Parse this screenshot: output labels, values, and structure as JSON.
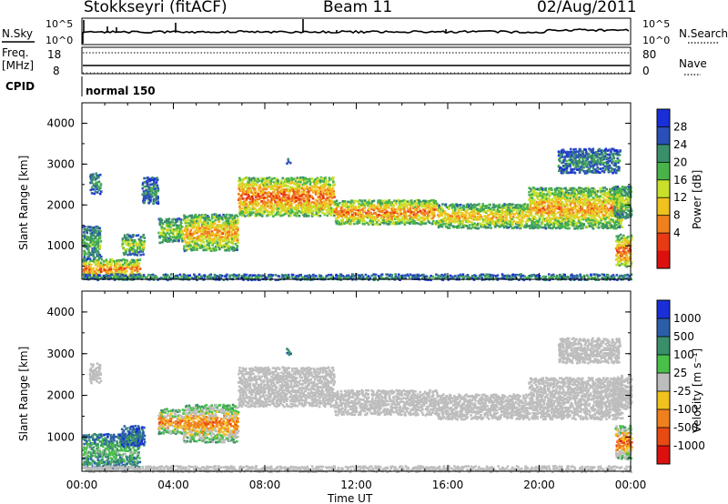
{
  "header": {
    "station": "Stokkseyri (fitACF)",
    "beam": "Beam 11",
    "date": "02/Aug/2011"
  },
  "top_panels": {
    "nsky_label": "N.Sky",
    "nsearch_label": "N.Search",
    "nsky_ticks": [
      "10^5",
      "10^0"
    ],
    "freq_label": "Freq.",
    "freq_unit": "[MHz]",
    "freq_ticks": [
      "18",
      "8"
    ],
    "nave_label": "Nave",
    "nave_ticks": [
      "80",
      "0"
    ],
    "cpid_label": "CPID",
    "cpid_value": "normal 150"
  },
  "colors": {
    "power_scale": [
      "#1a2fd8",
      "#2a4fb8",
      "#3a8f6a",
      "#49b34a",
      "#c8e02a",
      "#f0c21e",
      "#f0801e",
      "#e83a14",
      "#dd1010"
    ],
    "velocity_scale": [
      "#1a2fd8",
      "#2a5fa8",
      "#3a8f6a",
      "#49c04a",
      "#bdbdbd",
      "#f0c21e",
      "#f0801e",
      "#e84a14",
      "#dd1010"
    ]
  },
  "chart_data": [
    {
      "type": "heatmap",
      "title": "Power",
      "xlabel": "",
      "ylabel": "Slant Range [km]",
      "x_ticks": [
        "00:00",
        "04:00",
        "08:00",
        "12:00",
        "16:00",
        "20:00",
        "00:00"
      ],
      "y_ticks": [
        4000,
        3000,
        2000,
        1000
      ],
      "xlim": [
        0,
        24
      ],
      "ylim": [
        180,
        4500
      ],
      "colorbar": {
        "label": "Power [dB]",
        "ticks": [
          28,
          24,
          20,
          16,
          12,
          8,
          4
        ]
      },
      "bands": [
        {
          "t": [
            0,
            2.5
          ],
          "r": [
            200,
            700
          ],
          "level": 0.75
        },
        {
          "t": [
            0,
            24
          ],
          "r": [
            190,
            330
          ],
          "level": 0.3
        },
        {
          "t": [
            0,
            0.8
          ],
          "r": [
            700,
            1500
          ],
          "level": 0.4
        },
        {
          "t": [
            0.3,
            0.8
          ],
          "r": [
            2300,
            2800
          ],
          "level": 0.3
        },
        {
          "t": [
            1.7,
            2.7
          ],
          "r": [
            800,
            1300
          ],
          "level": 0.5
        },
        {
          "t": [
            3.3,
            4.4
          ],
          "r": [
            1100,
            1700
          ],
          "level": 0.5
        },
        {
          "t": [
            4.4,
            6.8
          ],
          "r": [
            900,
            1800
          ],
          "level": 0.7
        },
        {
          "t": [
            6.8,
            11.0
          ],
          "r": [
            1750,
            2700
          ],
          "level": 0.8
        },
        {
          "t": [
            11.0,
            15.5
          ],
          "r": [
            1550,
            2150
          ],
          "level": 0.75
        },
        {
          "t": [
            15.5,
            19.5
          ],
          "r": [
            1450,
            2050
          ],
          "level": 0.65
        },
        {
          "t": [
            19.5,
            23.6
          ],
          "r": [
            1450,
            2450
          ],
          "level": 0.7
        },
        {
          "t": [
            20.8,
            23.5
          ],
          "r": [
            2800,
            3400
          ],
          "level": 0.3
        },
        {
          "t": [
            23.3,
            24.0
          ],
          "r": [
            500,
            1300
          ],
          "level": 0.8
        },
        {
          "t": [
            23.2,
            24.0
          ],
          "r": [
            1700,
            2500
          ],
          "level": 0.5
        },
        {
          "t": [
            2.6,
            3.3
          ],
          "r": [
            2050,
            2700
          ],
          "level": 0.3
        },
        {
          "t": [
            8.9,
            9.1
          ],
          "r": [
            3000,
            3150
          ],
          "level": 0.3
        }
      ]
    },
    {
      "type": "heatmap",
      "title": "Velocity",
      "xlabel": "Time UT",
      "ylabel": "Slant Range [km]",
      "x_ticks": [
        "00:00",
        "04:00",
        "08:00",
        "12:00",
        "16:00",
        "20:00",
        "00:00"
      ],
      "y_ticks": [
        4000,
        3000,
        2000,
        1000
      ],
      "xlim": [
        0,
        24
      ],
      "ylim": [
        180,
        4500
      ],
      "colorbar": {
        "label": "Velocity [m s⁻¹]",
        "ticks": [
          "1000",
          "500",
          "100",
          "25",
          "-25",
          "-100",
          "-500",
          "-1000"
        ]
      },
      "bands": [
        {
          "t": [
            0,
            2.5
          ],
          "r": [
            250,
            1100
          ],
          "level": 0.4
        },
        {
          "t": [
            0,
            24
          ],
          "r": [
            190,
            330
          ],
          "level": 0.5
        },
        {
          "t": [
            0.3,
            0.8
          ],
          "r": [
            2300,
            2800
          ],
          "level": 0.5
        },
        {
          "t": [
            1.7,
            2.7
          ],
          "r": [
            800,
            1300
          ],
          "level": 0.25
        },
        {
          "t": [
            3.3,
            4.4
          ],
          "r": [
            1100,
            1700
          ],
          "level": 0.75
        },
        {
          "t": [
            4.4,
            6.8
          ],
          "r": [
            900,
            1800
          ],
          "level": 0.75
        },
        {
          "t": [
            6.8,
            11.0
          ],
          "r": [
            1750,
            2700
          ],
          "level": 0.5
        },
        {
          "t": [
            11.0,
            15.5
          ],
          "r": [
            1550,
            2150
          ],
          "level": 0.5
        },
        {
          "t": [
            15.5,
            19.5
          ],
          "r": [
            1450,
            2050
          ],
          "level": 0.5
        },
        {
          "t": [
            19.5,
            23.6
          ],
          "r": [
            1450,
            2450
          ],
          "level": 0.5
        },
        {
          "t": [
            20.8,
            23.5
          ],
          "r": [
            2800,
            3400
          ],
          "level": 0.5
        },
        {
          "t": [
            23.3,
            24.0
          ],
          "r": [
            500,
            1300
          ],
          "level": 0.8
        },
        {
          "t": [
            23.2,
            24.0
          ],
          "r": [
            1700,
            2500
          ],
          "level": 0.5
        },
        {
          "t": [
            8.9,
            9.1
          ],
          "r": [
            3000,
            3150
          ],
          "level": 0.35
        }
      ]
    }
  ]
}
